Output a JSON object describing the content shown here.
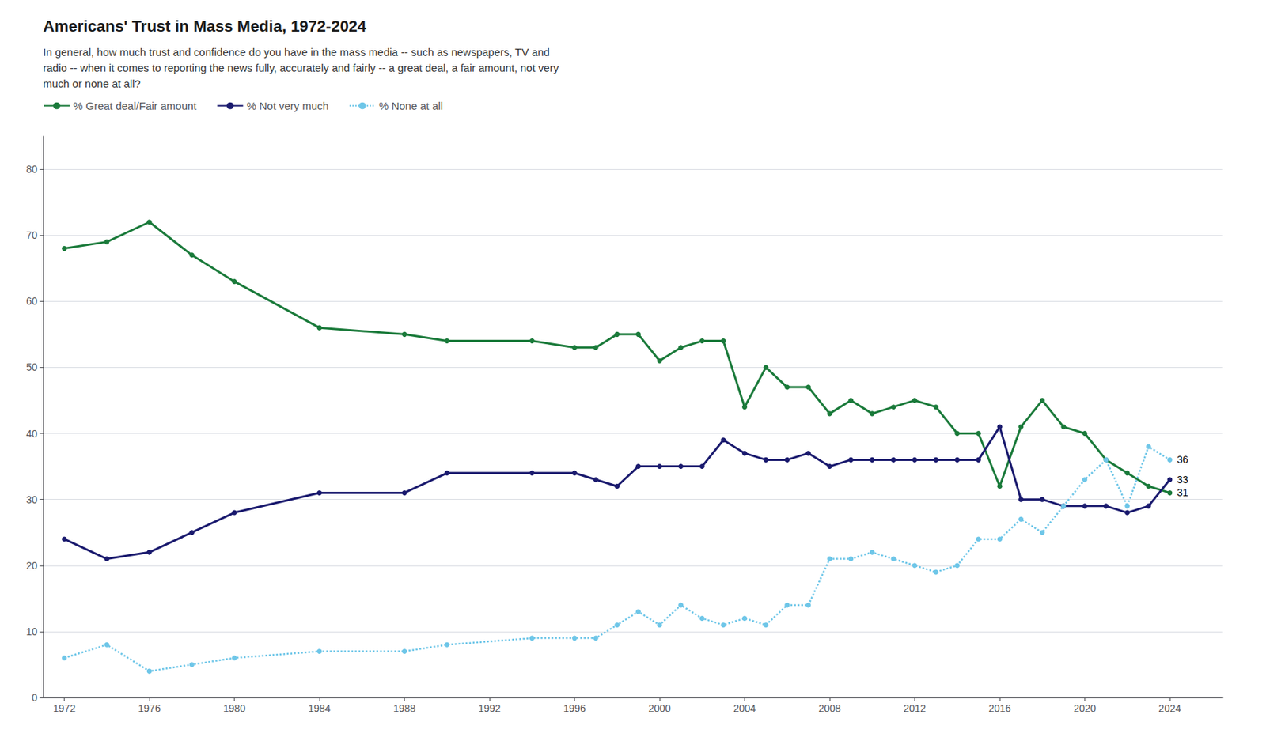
{
  "chart_data": {
    "type": "line",
    "title": "Americans' Trust in Mass Media, 1972-2024",
    "subtitle_lines": [
      "In general, how much trust and confidence do you have in the mass media -- such as newspapers, TV and",
      "radio -- when it comes to reporting the news fully, accurately and fairly -- a great deal, a fair amount, not very",
      "much or none at all?"
    ],
    "x": [
      1972,
      1974,
      1976,
      1978,
      1980,
      1984,
      1988,
      1990,
      1994,
      1996,
      1997,
      1998,
      1999,
      2000,
      2001,
      2002,
      2003,
      2004,
      2005,
      2006,
      2007,
      2008,
      2009,
      2010,
      2011,
      2012,
      2013,
      2014,
      2015,
      2016,
      2017,
      2018,
      2019,
      2020,
      2021,
      2022,
      2023,
      2024
    ],
    "series": [
      {
        "name": "% Great deal/Fair amount",
        "color": "#1a7a3a",
        "line_style": "solid",
        "marker": "circle",
        "values": [
          68,
          69,
          72,
          67,
          63,
          56,
          55,
          54,
          54,
          53,
          53,
          55,
          55,
          51,
          53,
          54,
          54,
          44,
          50,
          47,
          47,
          43,
          45,
          43,
          44,
          45,
          44,
          40,
          40,
          32,
          41,
          45,
          41,
          40,
          36,
          34,
          32,
          31
        ]
      },
      {
        "name": "% Not very much",
        "color": "#1a1a6e",
        "line_style": "solid",
        "marker": "circle",
        "values": [
          24,
          21,
          22,
          25,
          28,
          31,
          31,
          34,
          34,
          34,
          33,
          32,
          35,
          35,
          35,
          35,
          39,
          37,
          36,
          36,
          37,
          35,
          36,
          36,
          36,
          36,
          36,
          36,
          36,
          41,
          30,
          30,
          29,
          29,
          29,
          28,
          29,
          33
        ]
      },
      {
        "name": "% None at all",
        "color": "#6ec6e8",
        "line_style": "dotted",
        "marker": "circle",
        "values": [
          6,
          8,
          4,
          5,
          6,
          7,
          7,
          8,
          9,
          9,
          9,
          11,
          13,
          11,
          14,
          12,
          11,
          12,
          11,
          14,
          14,
          21,
          21,
          22,
          21,
          20,
          19,
          20,
          24,
          24,
          27,
          25,
          29,
          33,
          36,
          29,
          38,
          36
        ]
      }
    ],
    "xlim": [
      1971,
      2026.5
    ],
    "xticks": [
      1972,
      1976,
      1980,
      1984,
      1988,
      1992,
      1996,
      2000,
      2004,
      2008,
      2012,
      2016,
      2020,
      2024
    ],
    "ylim": [
      0,
      85
    ],
    "yticks": [
      0,
      10,
      20,
      30,
      40,
      50,
      60,
      70,
      80
    ],
    "grid": "y",
    "legend": "top-left",
    "annotations": [
      {
        "text": "36",
        "x": 2024,
        "y": 36
      },
      {
        "text": "33",
        "x": 2024,
        "y": 33
      },
      {
        "text": "31",
        "x": 2024,
        "y": 31
      }
    ]
  }
}
